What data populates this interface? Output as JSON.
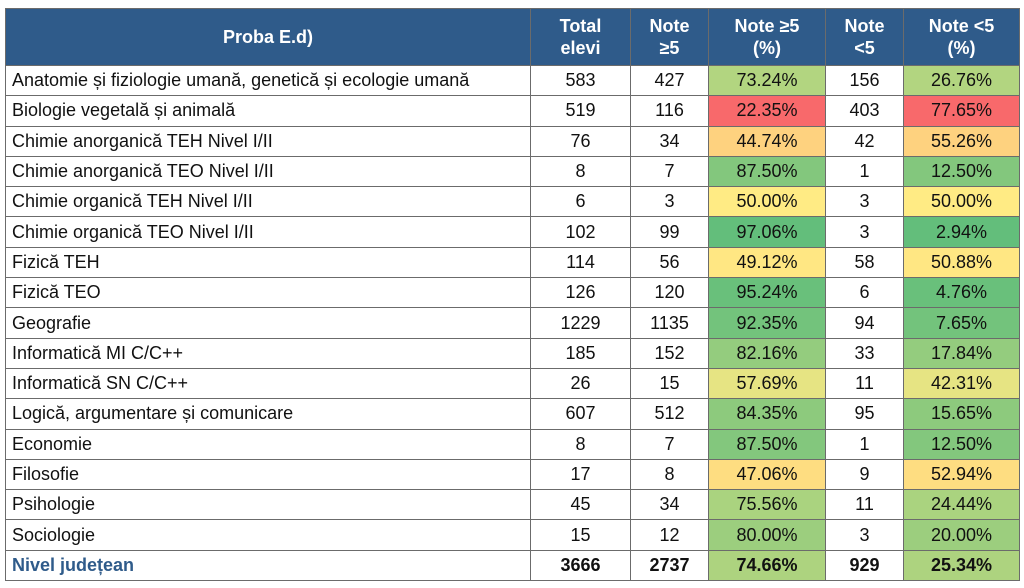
{
  "table": {
    "header": [
      "Proba E.d)",
      "Total elevi",
      "Note ≥5",
      "Note ≥5 (%)",
      "Note <5",
      "Note <5 (%)"
    ],
    "rows": [
      [
        "Anatomie și fiziologie umană, genetică și ecologie umană",
        "583",
        "427",
        "73.24%",
        "156",
        "26.76%"
      ],
      [
        "Biologie vegetală și animală",
        "519",
        "116",
        "22.35%",
        "403",
        "77.65%"
      ],
      [
        "Chimie anorganică TEH Nivel I/II",
        "76",
        "34",
        "44.74%",
        "42",
        "55.26%"
      ],
      [
        "Chimie anorganică TEO Nivel I/II",
        "8",
        "7",
        "87.50%",
        "1",
        "12.50%"
      ],
      [
        "Chimie organică TEH Nivel I/II",
        "6",
        "3",
        "50.00%",
        "3",
        "50.00%"
      ],
      [
        "Chimie organică TEO Nivel I/II",
        "102",
        "99",
        "97.06%",
        "3",
        "2.94%"
      ],
      [
        "Fizică TEH",
        "114",
        "56",
        "49.12%",
        "58",
        "50.88%"
      ],
      [
        "Fizică TEO",
        "126",
        "120",
        "95.24%",
        "6",
        "4.76%"
      ],
      [
        "Geografie",
        "1229",
        "1135",
        "92.35%",
        "94",
        "7.65%"
      ],
      [
        "Informatică MI C/C++",
        "185",
        "152",
        "82.16%",
        "33",
        "17.84%"
      ],
      [
        "Informatică SN C/C++",
        "26",
        "15",
        "57.69%",
        "11",
        "42.31%"
      ],
      [
        "Logică, argumentare și comunicare",
        "607",
        "512",
        "84.35%",
        "95",
        "15.65%"
      ],
      [
        "Economie",
        "8",
        "7",
        "87.50%",
        "1",
        "12.50%"
      ],
      [
        "Filosofie",
        "17",
        "8",
        "47.06%",
        "9",
        "52.94%"
      ],
      [
        "Psihologie",
        "45",
        "34",
        "75.56%",
        "11",
        "24.44%"
      ],
      [
        "Sociologie",
        "15",
        "12",
        "80.00%",
        "3",
        "20.00%"
      ]
    ],
    "total": [
      "Nivel județean",
      "3666",
      "2737",
      "74.66%",
      "929",
      "25.34%"
    ]
  }
}
